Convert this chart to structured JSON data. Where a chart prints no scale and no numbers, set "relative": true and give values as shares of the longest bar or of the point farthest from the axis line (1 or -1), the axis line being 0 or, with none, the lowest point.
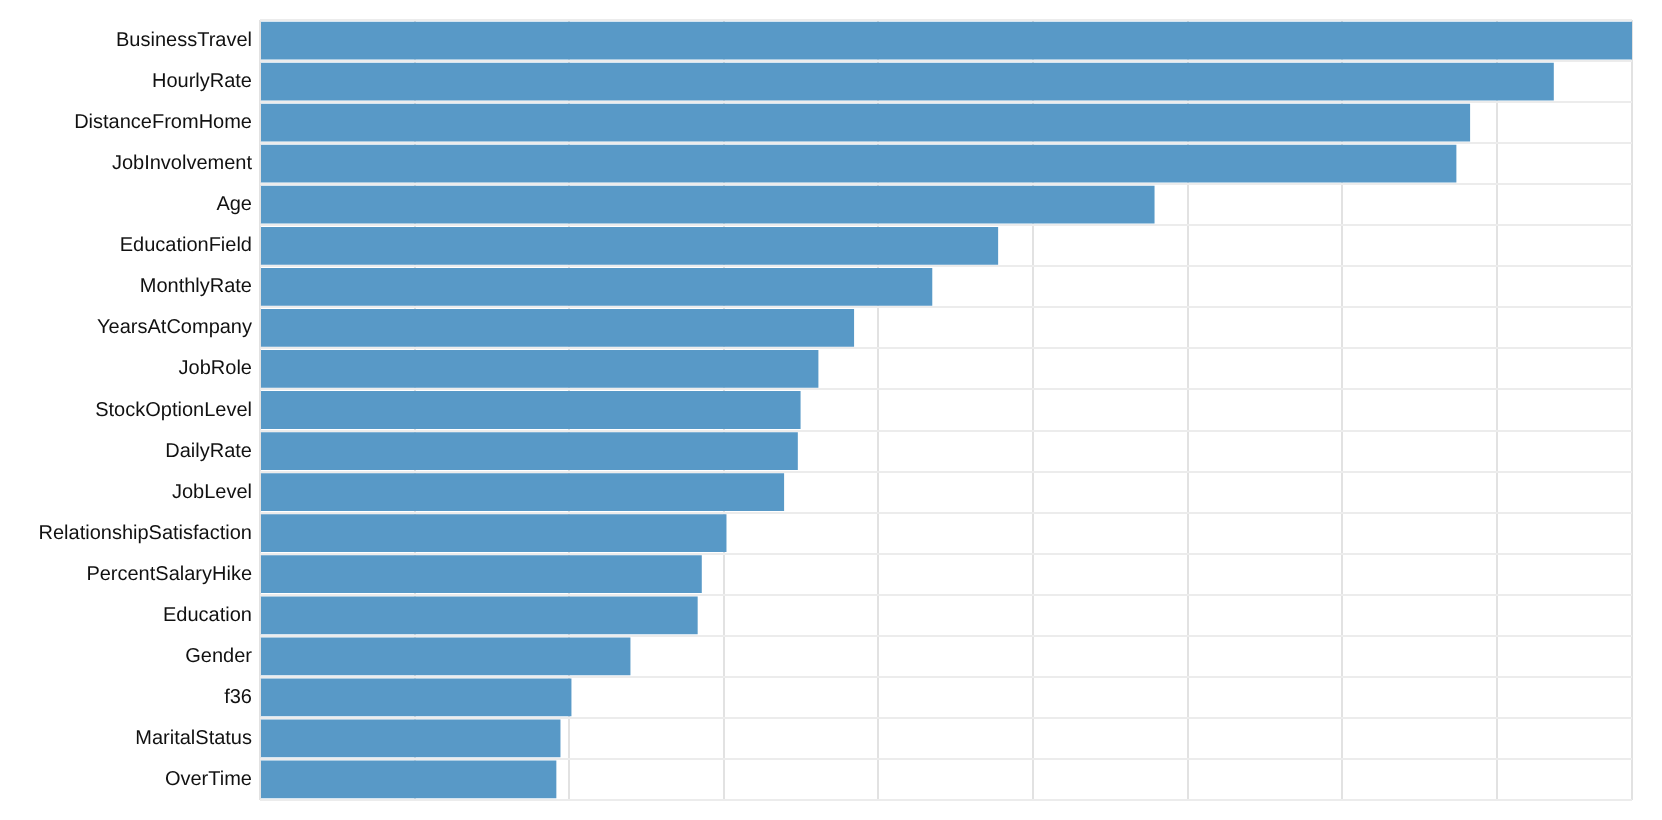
{
  "chart_data": {
    "type": "bar",
    "orientation": "horizontal",
    "relative": true,
    "grid": true,
    "color": "#5899c7",
    "categories": [
      "BusinessTravel",
      "HourlyRate",
      "DistanceFromHome",
      "JobInvolvement",
      "Age",
      "EducationField",
      "MonthlyRate",
      "YearsAtCompany",
      "JobRole",
      "StockOptionLevel",
      "DailyRate",
      "JobLevel",
      "RelationshipSatisfaction",
      "PercentSalaryHike",
      "Education",
      "Gender",
      "f36",
      "MaritalStatus",
      "OverTime"
    ],
    "values": [
      1.0,
      0.943,
      0.882,
      0.872,
      0.652,
      0.538,
      0.49,
      0.433,
      0.407,
      0.394,
      0.392,
      0.382,
      0.34,
      0.322,
      0.319,
      0.27,
      0.227,
      0.219,
      0.216
    ]
  }
}
